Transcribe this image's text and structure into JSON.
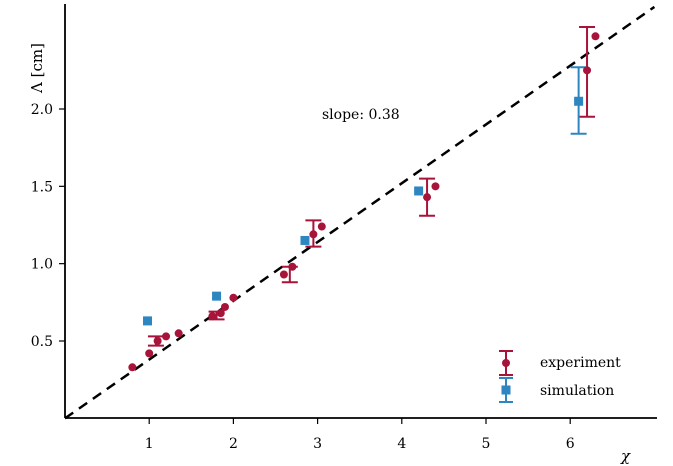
{
  "chart_data": {
    "type": "scatter",
    "title": "",
    "xlabel": "χ",
    "ylabel": "Λ [cm]",
    "xlim": [
      0,
      7.0
    ],
    "ylim": [
      0,
      2.65
    ],
    "xticks": [
      1,
      2,
      3,
      4,
      5,
      6
    ],
    "xtick_labels": [
      "1",
      "2",
      "3",
      "4",
      "5",
      "6"
    ],
    "yticks": [
      0.5,
      1.0,
      1.5,
      2.0
    ],
    "ytick_labels": [
      "0.5",
      "1.0",
      "1.5",
      "2.0"
    ],
    "grid": false,
    "legend_position": "bottom-right",
    "annotation": "slope: 0.38",
    "fit_line": {
      "slope": 0.38,
      "intercept": 0,
      "style": "dashed",
      "color": "#000000"
    },
    "series": [
      {
        "name": "experiment",
        "marker": "circle",
        "color": "#a8133a",
        "points": [
          [
            0.8,
            0.33
          ],
          [
            1.0,
            0.42
          ],
          [
            1.1,
            0.5
          ],
          [
            1.2,
            0.53
          ],
          [
            1.35,
            0.55
          ],
          [
            1.75,
            0.66
          ],
          [
            1.85,
            0.68
          ],
          [
            1.9,
            0.72
          ],
          [
            2.0,
            0.78
          ],
          [
            2.6,
            0.93
          ],
          [
            2.7,
            0.98
          ],
          [
            2.95,
            1.19
          ],
          [
            3.05,
            1.24
          ],
          [
            4.3,
            1.43
          ],
          [
            4.4,
            1.5
          ],
          [
            6.2,
            2.25
          ],
          [
            6.3,
            2.47
          ]
        ],
        "error_bars": [
          {
            "x": 1.08,
            "low": 0.47,
            "high": 0.53
          },
          {
            "x": 1.8,
            "low": 0.64,
            "high": 0.69
          },
          {
            "x": 2.67,
            "low": 0.88,
            "high": 0.98
          },
          {
            "x": 2.95,
            "low": 1.11,
            "high": 1.28
          },
          {
            "x": 4.3,
            "low": 1.31,
            "high": 1.55
          },
          {
            "x": 6.2,
            "low": 1.95,
            "high": 2.53
          }
        ]
      },
      {
        "name": "simulation",
        "marker": "square",
        "color": "#2e86c1",
        "points": [
          [
            0.98,
            0.63
          ],
          [
            1.8,
            0.79
          ],
          [
            2.85,
            1.15
          ],
          [
            4.2,
            1.47
          ],
          [
            6.1,
            2.05
          ]
        ],
        "error_bars": [
          {
            "x": 6.1,
            "low": 1.84,
            "high": 2.27
          }
        ]
      }
    ]
  }
}
